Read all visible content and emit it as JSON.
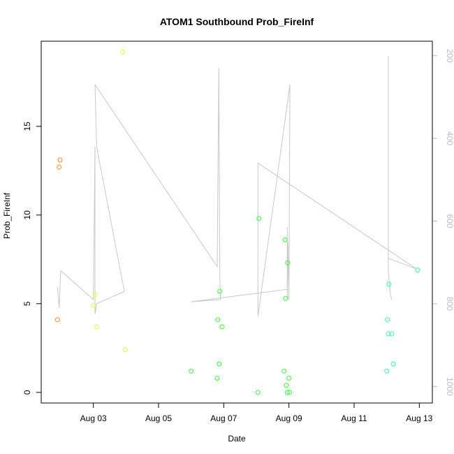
{
  "chart_data": {
    "type": "scatter",
    "title": "ATOM1 Southbound Prob_FireInf",
    "xlabel": "Date",
    "ylabel": "Prob_FireInf",
    "x_ticks": [
      "Aug 03",
      "Aug 05",
      "Aug 07",
      "Aug 09",
      "Aug 11",
      "Aug 13"
    ],
    "x_tick_values": [
      3,
      5,
      7,
      9,
      11,
      13
    ],
    "xlim": [
      1.4,
      13.4
    ],
    "y_ticks": [
      "0",
      "5",
      "10",
      "15"
    ],
    "y_tick_values": [
      0,
      5,
      10,
      15
    ],
    "ylim": [
      -0.6,
      19.8
    ],
    "y2_ticks": [
      "200",
      "400",
      "600",
      "800",
      "1000"
    ],
    "y2_tick_values": [
      200,
      400,
      600,
      800,
      1000
    ],
    "y2lim": [
      1040,
      165
    ],
    "grid": false,
    "colors": {
      "line": "#c8c8c8",
      "orange": "#ff8c1a",
      "yellow": "#e0ff33",
      "green": "#33ff33",
      "cyan": "#33ffaa"
    },
    "points": [
      {
        "x": 1.9,
        "y": 4.1,
        "c": "orange"
      },
      {
        "x": 1.95,
        "y": 12.7,
        "c": "orange"
      },
      {
        "x": 1.98,
        "y": 13.1,
        "c": "orange"
      },
      {
        "x": 3.0,
        "y": 4.9,
        "c": "yellow"
      },
      {
        "x": 3.05,
        "y": 5.5,
        "c": "yellow"
      },
      {
        "x": 3.1,
        "y": 3.7,
        "c": "yellow"
      },
      {
        "x": 3.9,
        "y": 19.2,
        "c": "yellow"
      },
      {
        "x": 3.98,
        "y": 2.4,
        "c": "yellow"
      },
      {
        "x": 6.0,
        "y": 1.2,
        "c": "green"
      },
      {
        "x": 6.8,
        "y": 0.8,
        "c": "green"
      },
      {
        "x": 6.82,
        "y": 4.1,
        "c": "green"
      },
      {
        "x": 6.86,
        "y": 1.6,
        "c": "green"
      },
      {
        "x": 6.88,
        "y": 5.7,
        "c": "green"
      },
      {
        "x": 6.95,
        "y": 3.7,
        "c": "green"
      },
      {
        "x": 8.05,
        "y": 0.0,
        "c": "green"
      },
      {
        "x": 8.08,
        "y": 9.8,
        "c": "green"
      },
      {
        "x": 8.85,
        "y": 1.2,
        "c": "green"
      },
      {
        "x": 8.88,
        "y": 8.6,
        "c": "green"
      },
      {
        "x": 8.9,
        "y": 5.3,
        "c": "green"
      },
      {
        "x": 8.92,
        "y": 0.4,
        "c": "green"
      },
      {
        "x": 8.95,
        "y": 0.0,
        "c": "green"
      },
      {
        "x": 8.96,
        "y": 7.3,
        "c": "green"
      },
      {
        "x": 9.0,
        "y": 0.8,
        "c": "green"
      },
      {
        "x": 9.02,
        "y": 0.0,
        "c": "green"
      },
      {
        "x": 12.0,
        "y": 1.2,
        "c": "cyan"
      },
      {
        "x": 12.02,
        "y": 4.1,
        "c": "cyan"
      },
      {
        "x": 12.05,
        "y": 3.3,
        "c": "cyan"
      },
      {
        "x": 12.07,
        "y": 6.1,
        "c": "cyan"
      },
      {
        "x": 12.15,
        "y": 3.3,
        "c": "cyan"
      },
      {
        "x": 12.2,
        "y": 1.6,
        "c": "cyan"
      },
      {
        "x": 12.95,
        "y": 6.9,
        "c": "cyan"
      }
    ],
    "line": [
      [
        1.9,
        760
      ],
      [
        1.95,
        810
      ],
      [
        2.0,
        720
      ],
      [
        3.0,
        790
      ],
      [
        3.05,
        420
      ],
      [
        3.05,
        825
      ],
      [
        3.1,
        800
      ],
      [
        3.95,
        770
      ],
      [
        3.1,
        420
      ],
      [
        3.05,
        270
      ],
      [
        6.8,
        710
      ],
      [
        6.85,
        230
      ],
      [
        6.88,
        740
      ],
      [
        6.9,
        790
      ],
      [
        6.0,
        795
      ],
      [
        8.95,
        765
      ],
      [
        8.95,
        615
      ],
      [
        8.95,
        790
      ],
      [
        8.97,
        650
      ],
      [
        9.0,
        790
      ],
      [
        9.03,
        270
      ],
      [
        8.05,
        830
      ],
      [
        8.05,
        460
      ],
      [
        12.9,
        715
      ],
      [
        12.05,
        690
      ],
      [
        12.05,
        200
      ],
      [
        12.05,
        720
      ],
      [
        12.1,
        770
      ],
      [
        12.15,
        790
      ]
    ]
  }
}
